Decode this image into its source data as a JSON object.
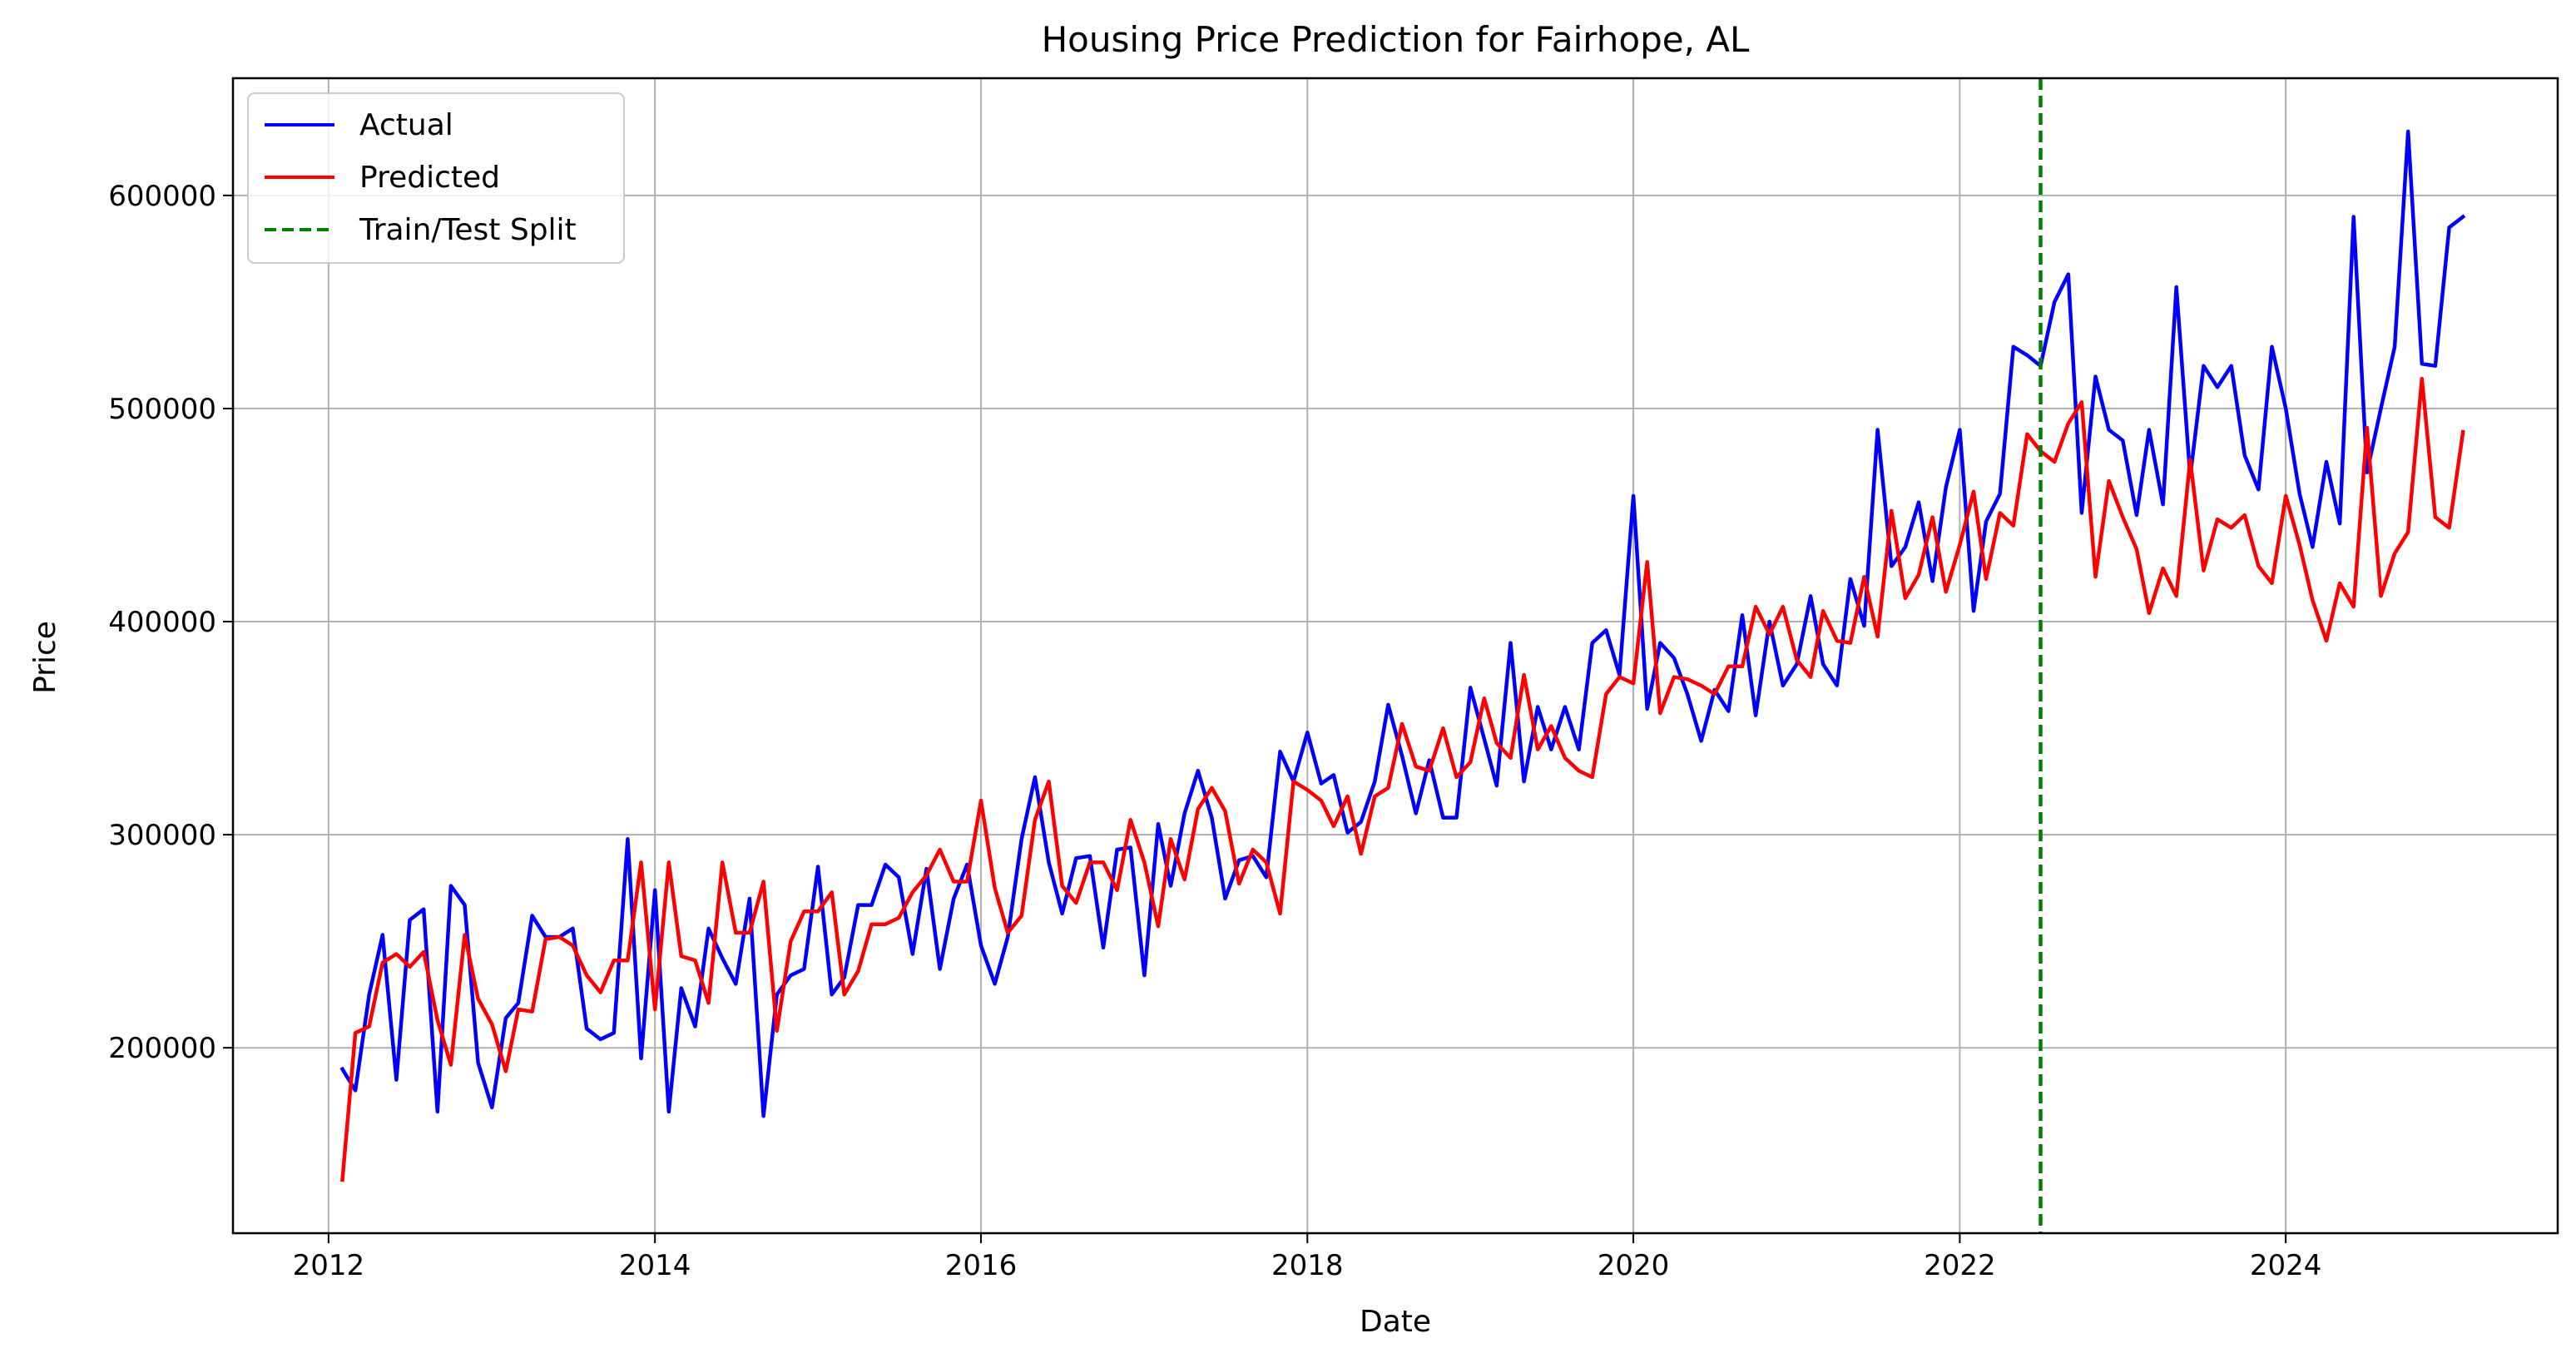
{
  "chart_data": {
    "type": "line",
    "title": "Housing Price Prediction for Fairhope, AL",
    "xlabel": "Date",
    "ylabel": "Price",
    "xlim": [
      "2011-06-01",
      "2025-09-01"
    ],
    "ylim": [
      113000,
      655000
    ],
    "x_ticks": [
      "2012",
      "2014",
      "2016",
      "2018",
      "2020",
      "2022",
      "2024"
    ],
    "y_ticks": [
      200000,
      300000,
      400000,
      500000,
      600000
    ],
    "grid": true,
    "legend_position": "top-left",
    "colors": {
      "Actual": "#0000ff",
      "Predicted": "#ff0000",
      "Train/Test Split": "#008000"
    },
    "split_date": "2022-07-01",
    "x": [
      "2012-02",
      "2012-03",
      "2012-04",
      "2012-05",
      "2012-06",
      "2012-07",
      "2012-08",
      "2012-09",
      "2012-10",
      "2012-11",
      "2012-12",
      "2013-01",
      "2013-02",
      "2013-03",
      "2013-04",
      "2013-05",
      "2013-06",
      "2013-07",
      "2013-08",
      "2013-09",
      "2013-10",
      "2013-11",
      "2013-12",
      "2014-01",
      "2014-02",
      "2014-03",
      "2014-04",
      "2014-05",
      "2014-06",
      "2014-07",
      "2014-08",
      "2014-09",
      "2014-10",
      "2014-11",
      "2014-12",
      "2015-01",
      "2015-02",
      "2015-03",
      "2015-04",
      "2015-05",
      "2015-06",
      "2015-07",
      "2015-08",
      "2015-09",
      "2015-10",
      "2015-11",
      "2015-12",
      "2016-01",
      "2016-02",
      "2016-03",
      "2016-04",
      "2016-05",
      "2016-06",
      "2016-07",
      "2016-08",
      "2016-09",
      "2016-10",
      "2016-11",
      "2016-12",
      "2017-01",
      "2017-02",
      "2017-03",
      "2017-04",
      "2017-05",
      "2017-06",
      "2017-07",
      "2017-08",
      "2017-09",
      "2017-10",
      "2017-11",
      "2017-12",
      "2018-01",
      "2018-02",
      "2018-03",
      "2018-04",
      "2018-05",
      "2018-06",
      "2018-07",
      "2018-08",
      "2018-09",
      "2018-10",
      "2018-11",
      "2018-12",
      "2019-01",
      "2019-02",
      "2019-03",
      "2019-04",
      "2019-05",
      "2019-06",
      "2019-07",
      "2019-08",
      "2019-09",
      "2019-10",
      "2019-11",
      "2019-12",
      "2020-01",
      "2020-02",
      "2020-03",
      "2020-04",
      "2020-05",
      "2020-06",
      "2020-07",
      "2020-08",
      "2020-09",
      "2020-10",
      "2020-11",
      "2020-12",
      "2021-01",
      "2021-02",
      "2021-03",
      "2021-04",
      "2021-05",
      "2021-06",
      "2021-07",
      "2021-08",
      "2021-09",
      "2021-10",
      "2021-11",
      "2021-12",
      "2022-01",
      "2022-02",
      "2022-03",
      "2022-04",
      "2022-05",
      "2022-06",
      "2022-07",
      "2022-08",
      "2022-09",
      "2022-10",
      "2022-11",
      "2022-12",
      "2023-01",
      "2023-02",
      "2023-03",
      "2023-04",
      "2023-05",
      "2023-06",
      "2023-07",
      "2023-08",
      "2023-09",
      "2023-10",
      "2023-11",
      "2023-12",
      "2024-01",
      "2024-02",
      "2024-03",
      "2024-04",
      "2024-05",
      "2024-06",
      "2024-07",
      "2024-08",
      "2024-09",
      "2024-10",
      "2024-11",
      "2024-12",
      "2025-01",
      "2025-02"
    ],
    "series": [
      {
        "name": "Actual",
        "values": [
          190000,
          180000,
          225000,
          253000,
          185000,
          260000,
          265000,
          170000,
          276000,
          267000,
          193000,
          172000,
          214000,
          221000,
          262000,
          252000,
          252000,
          256000,
          209000,
          204000,
          207000,
          298000,
          195000,
          274000,
          170000,
          228000,
          210000,
          256000,
          242000,
          230000,
          270000,
          168000,
          225000,
          234000,
          237000,
          285000,
          225000,
          233000,
          267000,
          267000,
          286000,
          280000,
          244000,
          284000,
          237000,
          270000,
          286000,
          248000,
          230000,
          252000,
          298000,
          327000,
          287000,
          263000,
          289000,
          290000,
          247000,
          293000,
          294000,
          234000,
          305000,
          276000,
          310000,
          330000,
          308000,
          270000,
          288000,
          290000,
          280000,
          339000,
          325000,
          348000,
          324000,
          328000,
          301000,
          306000,
          325000,
          361000,
          337000,
          310000,
          335000,
          308000,
          308000,
          369000,
          345000,
          323000,
          390000,
          325000,
          360000,
          340000,
          360000,
          340000,
          390000,
          396000,
          375000,
          459000,
          359000,
          390000,
          383000,
          366000,
          344000,
          368000,
          358000,
          403000,
          356000,
          400000,
          370000,
          380000,
          412000,
          380000,
          370000,
          420000,
          398000,
          490000,
          426000,
          435000,
          456000,
          419000,
          463000,
          490000,
          405000,
          447000,
          460000,
          529000,
          525000,
          520000,
          550000,
          563000,
          451000,
          515000,
          490000,
          485000,
          450000,
          490000,
          455000,
          557000,
          468000,
          520000,
          510000,
          520000,
          478000,
          462000,
          529000,
          500000,
          460000,
          435000,
          475000,
          446000,
          590000,
          470000,
          500000,
          529000,
          630000,
          521000,
          520000,
          585000,
          590000
        ]
      },
      {
        "name": "Predicted",
        "values": [
          138000,
          207000,
          210000,
          240000,
          244000,
          238000,
          245000,
          213000,
          192000,
          253000,
          223000,
          211000,
          189000,
          218000,
          217000,
          251000,
          252000,
          248000,
          234000,
          226000,
          241000,
          241000,
          287000,
          218000,
          287000,
          243000,
          241000,
          221000,
          287000,
          254000,
          254000,
          278000,
          208000,
          250000,
          264000,
          264000,
          273000,
          225000,
          236000,
          258000,
          258000,
          261000,
          273000,
          281000,
          293000,
          278000,
          278000,
          316000,
          275000,
          254000,
          262000,
          307000,
          325000,
          276000,
          268000,
          287000,
          287000,
          274000,
          307000,
          287000,
          257000,
          298000,
          279000,
          312000,
          322000,
          311000,
          277000,
          293000,
          287000,
          263000,
          325000,
          321000,
          316000,
          304000,
          318000,
          291000,
          318000,
          322000,
          352000,
          332000,
          330000,
          350000,
          327000,
          334000,
          364000,
          343000,
          336000,
          375000,
          340000,
          351000,
          336000,
          330000,
          327000,
          366000,
          374000,
          371000,
          428000,
          357000,
          374000,
          373000,
          370000,
          366000,
          379000,
          379000,
          407000,
          394000,
          407000,
          382000,
          374000,
          405000,
          391000,
          390000,
          421000,
          393000,
          452000,
          411000,
          422000,
          449000,
          414000,
          436000,
          461000,
          420000,
          451000,
          445000,
          488000,
          480000,
          475000,
          493000,
          503000,
          421000,
          466000,
          449000,
          434000,
          404000,
          425000,
          412000,
          476000,
          424000,
          448000,
          444000,
          450000,
          426000,
          418000,
          459000,
          436000,
          410000,
          391000,
          418000,
          407000,
          491000,
          412000,
          432000,
          442000,
          514000,
          449000,
          444000,
          489000
        ]
      }
    ]
  }
}
